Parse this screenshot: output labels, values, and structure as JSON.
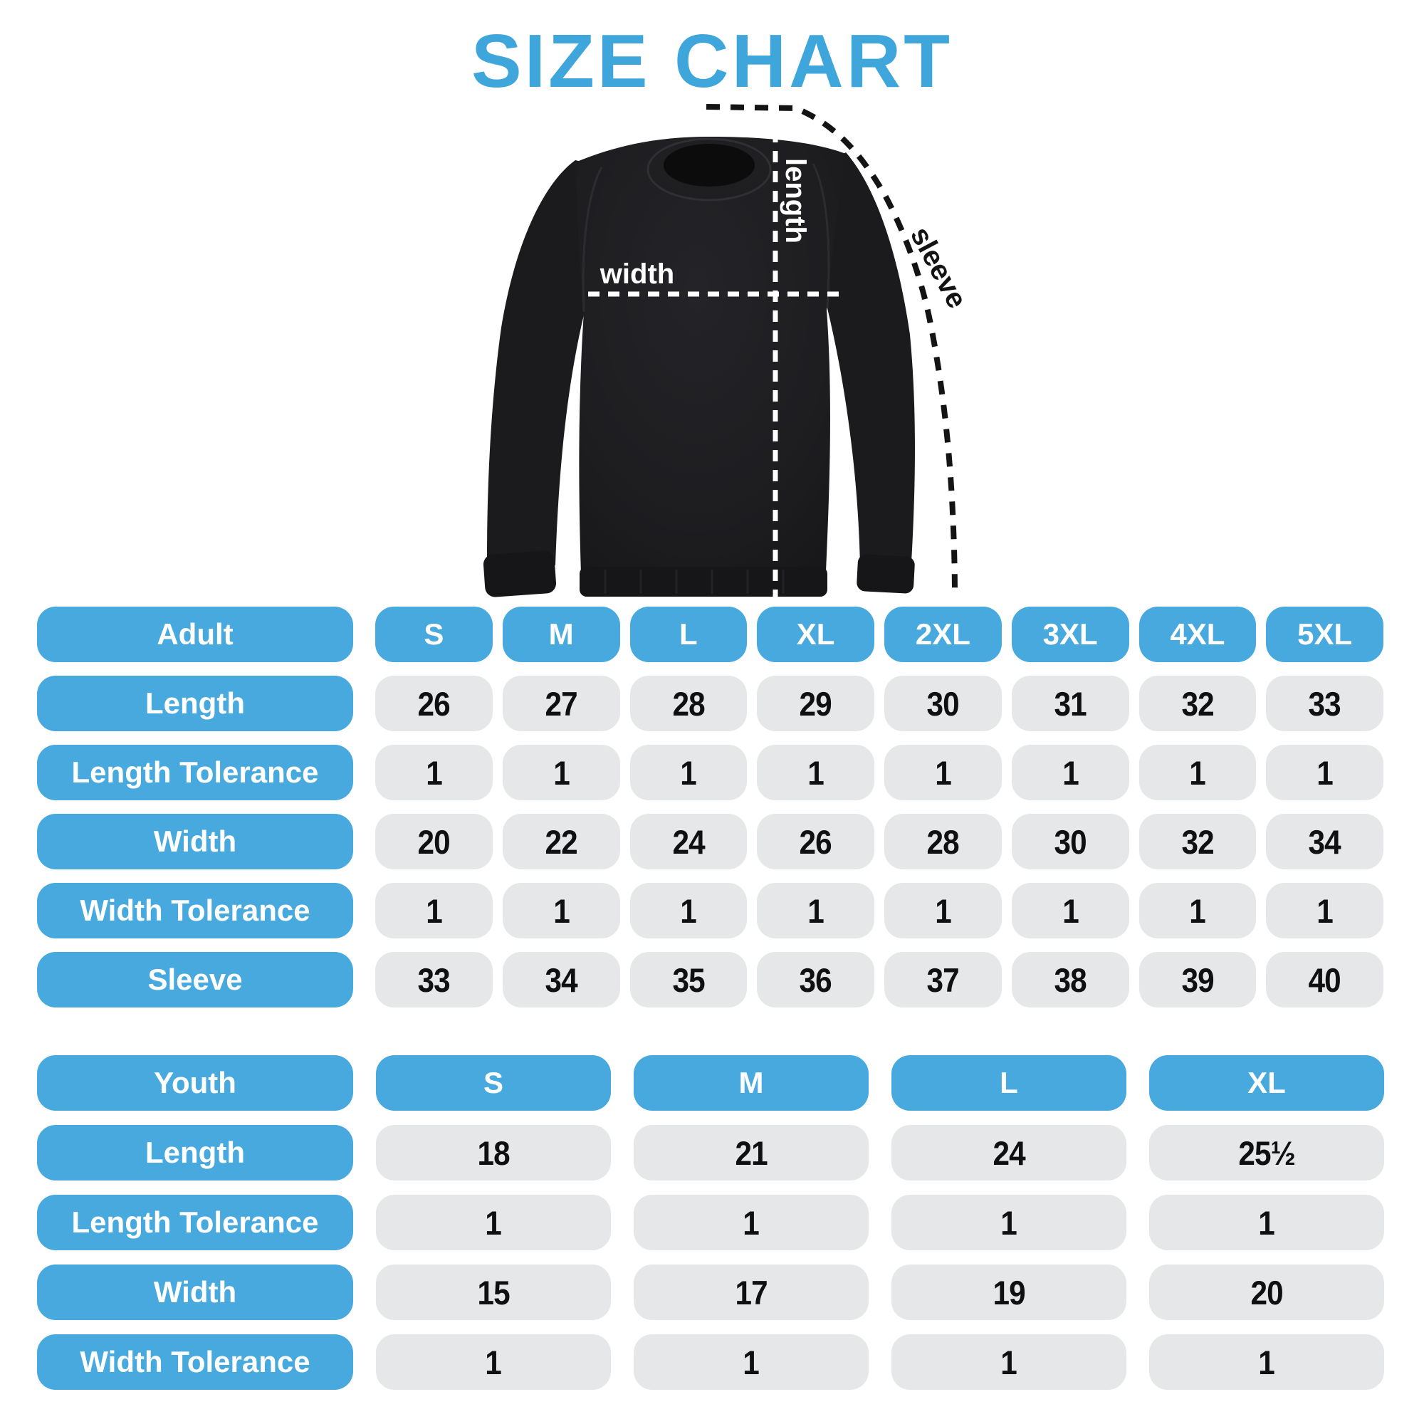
{
  "title": "SIZE CHART",
  "colors": {
    "title_blue": "#3FA6DC",
    "pill_blue": "#47A9DE",
    "cell_gray": "#E6E7E9",
    "ink": "#101012",
    "garment": "#1d1d20"
  },
  "diagram": {
    "labels": {
      "length": "length",
      "width": "width",
      "sleeve": "sleeve"
    }
  },
  "adult_table": {
    "header": {
      "label": "Adult",
      "sizes": [
        "S",
        "M",
        "L",
        "XL",
        "2XL",
        "3XL",
        "4XL",
        "5XL"
      ]
    },
    "rows": [
      {
        "label": "Length",
        "values": [
          "26",
          "27",
          "28",
          "29",
          "30",
          "31",
          "32",
          "33"
        ]
      },
      {
        "label": "Length Tolerance",
        "values": [
          "1",
          "1",
          "1",
          "1",
          "1",
          "1",
          "1",
          "1"
        ]
      },
      {
        "label": "Width",
        "values": [
          "20",
          "22",
          "24",
          "26",
          "28",
          "30",
          "32",
          "34"
        ]
      },
      {
        "label": "Width Tolerance",
        "values": [
          "1",
          "1",
          "1",
          "1",
          "1",
          "1",
          "1",
          "1"
        ]
      },
      {
        "label": "Sleeve",
        "values": [
          "33",
          "34",
          "35",
          "36",
          "37",
          "38",
          "39",
          "40"
        ]
      }
    ]
  },
  "youth_table": {
    "header": {
      "label": "Youth",
      "sizes": [
        "S",
        "M",
        "L",
        "XL"
      ]
    },
    "rows": [
      {
        "label": "Length",
        "values": [
          "18",
          "21",
          "24",
          "25½"
        ]
      },
      {
        "label": "Length Tolerance",
        "values": [
          "1",
          "1",
          "1",
          "1"
        ]
      },
      {
        "label": "Width",
        "values": [
          "15",
          "17",
          "19",
          "20"
        ]
      },
      {
        "label": "Width Tolerance",
        "values": [
          "1",
          "1",
          "1",
          "1"
        ]
      }
    ]
  }
}
